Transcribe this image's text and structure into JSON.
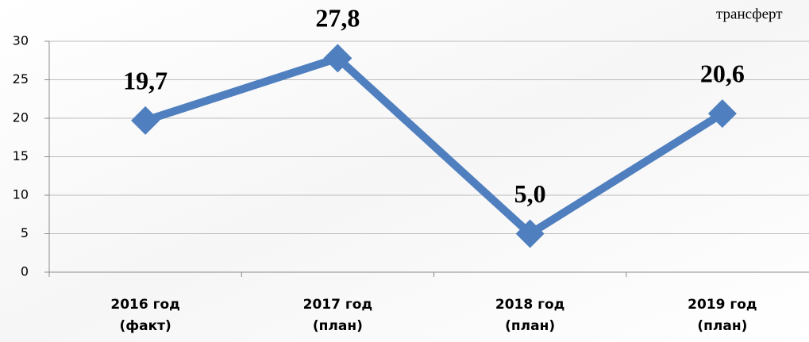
{
  "chart_data": {
    "type": "line",
    "annotation": "трансферт",
    "categories": [
      "2016 год\n(факт)",
      "2017 год\n(план)",
      "2018 год\n(план)",
      "2019 год\n(план)"
    ],
    "series": [
      {
        "name": null,
        "color": "#4f7fbf",
        "values": [
          19.7,
          27.8,
          5.0,
          20.6
        ],
        "value_labels": [
          "19,7",
          "27,8",
          "5,0",
          "20,6"
        ]
      }
    ],
    "ylim": [
      0,
      30
    ],
    "yticks": [
      0,
      5,
      10,
      15,
      20,
      25,
      30
    ],
    "grid": true
  }
}
